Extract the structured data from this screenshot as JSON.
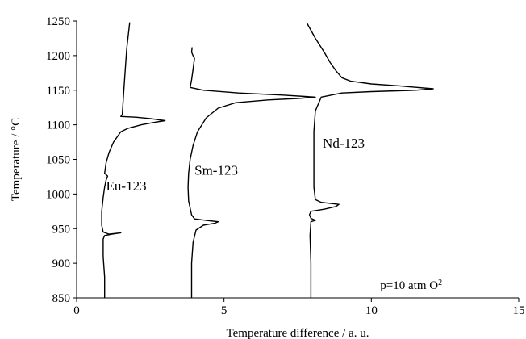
{
  "chart_data": {
    "type": "line",
    "title": "",
    "xlabel": "Temperature difference / a. u.",
    "ylabel": "Temperature / °C",
    "xlim": [
      0,
      15
    ],
    "ylim": [
      850,
      1250
    ],
    "xticks": [
      0,
      5,
      10,
      15
    ],
    "yticks": [
      850,
      900,
      950,
      1000,
      1050,
      1100,
      1150,
      1200,
      1250
    ],
    "grid": false,
    "annotation": {
      "text": "p=10 atm O",
      "superscript": "2"
    },
    "series": [
      {
        "name": "Eu-123",
        "points": [
          [
            0.95,
            850
          ],
          [
            0.95,
            880
          ],
          [
            0.9,
            910
          ],
          [
            0.9,
            935
          ],
          [
            0.95,
            940
          ],
          [
            1.2,
            942
          ],
          [
            1.5,
            944
          ],
          [
            1.1,
            942
          ],
          [
            0.9,
            945
          ],
          [
            0.85,
            955
          ],
          [
            0.85,
            975
          ],
          [
            0.9,
            995
          ],
          [
            0.95,
            1010
          ],
          [
            1.0,
            1020
          ],
          [
            1.05,
            1026
          ],
          [
            0.95,
            1030
          ],
          [
            1.0,
            1045
          ],
          [
            1.1,
            1060
          ],
          [
            1.25,
            1075
          ],
          [
            1.5,
            1090
          ],
          [
            1.75,
            1095
          ],
          [
            2.2,
            1100
          ],
          [
            2.7,
            1104
          ],
          [
            3.0,
            1106
          ],
          [
            2.5,
            1109
          ],
          [
            2.0,
            1111
          ],
          [
            1.5,
            1112
          ],
          [
            1.55,
            1115
          ],
          [
            1.6,
            1150
          ],
          [
            1.65,
            1180
          ],
          [
            1.7,
            1210
          ],
          [
            1.8,
            1248
          ]
        ]
      },
      {
        "name": "Sm-123",
        "points": [
          [
            3.9,
            850
          ],
          [
            3.9,
            900
          ],
          [
            3.95,
            930
          ],
          [
            4.05,
            948
          ],
          [
            4.3,
            955
          ],
          [
            4.7,
            958
          ],
          [
            4.8,
            960
          ],
          [
            4.4,
            962
          ],
          [
            4.0,
            964
          ],
          [
            3.9,
            970
          ],
          [
            3.8,
            990
          ],
          [
            3.78,
            1010
          ],
          [
            3.8,
            1030
          ],
          [
            3.85,
            1050
          ],
          [
            3.95,
            1070
          ],
          [
            4.1,
            1090
          ],
          [
            4.4,
            1110
          ],
          [
            4.8,
            1124
          ],
          [
            5.4,
            1132
          ],
          [
            6.5,
            1136
          ],
          [
            7.5,
            1138
          ],
          [
            8.1,
            1140
          ],
          [
            7.0,
            1143
          ],
          [
            5.5,
            1146
          ],
          [
            4.3,
            1150
          ],
          [
            3.85,
            1154
          ],
          [
            3.9,
            1165
          ],
          [
            3.95,
            1180
          ],
          [
            4.0,
            1196
          ],
          [
            3.95,
            1200
          ],
          [
            3.9,
            1205
          ],
          [
            3.92,
            1212
          ]
        ]
      },
      {
        "name": "Nd-123",
        "points": [
          [
            7.95,
            850
          ],
          [
            7.95,
            900
          ],
          [
            7.92,
            940
          ],
          [
            7.95,
            960
          ],
          [
            8.1,
            962
          ],
          [
            7.95,
            965
          ],
          [
            7.9,
            970
          ],
          [
            7.95,
            975
          ],
          [
            8.4,
            978
          ],
          [
            8.8,
            982
          ],
          [
            8.9,
            985
          ],
          [
            8.3,
            988
          ],
          [
            8.1,
            992
          ],
          [
            8.05,
            1010
          ],
          [
            8.05,
            1050
          ],
          [
            8.05,
            1090
          ],
          [
            8.1,
            1120
          ],
          [
            8.3,
            1140
          ],
          [
            9.0,
            1146
          ],
          [
            10.0,
            1148
          ],
          [
            11.5,
            1150
          ],
          [
            12.1,
            1152
          ],
          [
            11.0,
            1156
          ],
          [
            10.0,
            1159
          ],
          [
            9.3,
            1163
          ],
          [
            9.0,
            1168
          ],
          [
            8.8,
            1178
          ],
          [
            8.6,
            1190
          ],
          [
            8.4,
            1205
          ],
          [
            8.1,
            1225
          ],
          [
            7.8,
            1248
          ]
        ]
      }
    ]
  }
}
